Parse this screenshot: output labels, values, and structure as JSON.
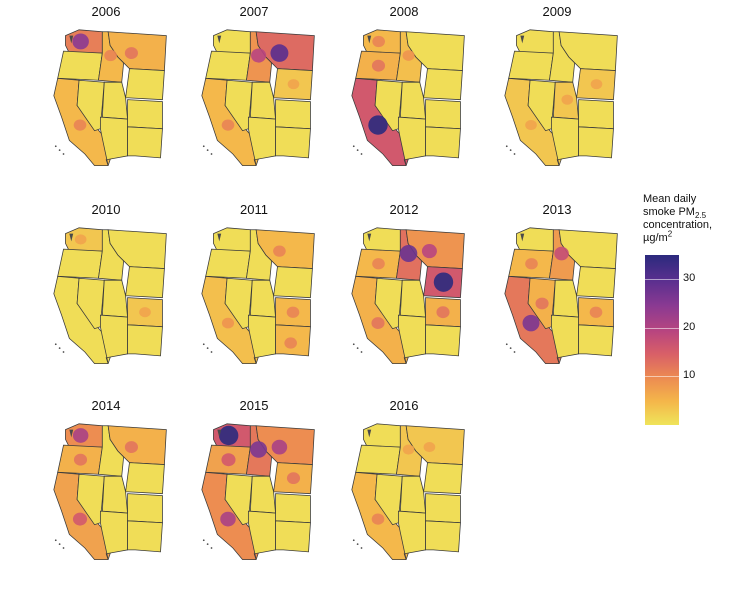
{
  "panels": [
    {
      "year": "2006",
      "hot": [
        {
          "s": "WA",
          "l": 0.7
        },
        {
          "s": "MT",
          "l": 0.35
        },
        {
          "s": "CA",
          "l": 0.3
        },
        {
          "s": "ID",
          "l": 0.3
        }
      ]
    },
    {
      "year": "2007",
      "hot": [
        {
          "s": "MT",
          "l": 0.85
        },
        {
          "s": "ID",
          "l": 0.55
        },
        {
          "s": "CA",
          "l": 0.3
        },
        {
          "s": "WY",
          "l": 0.2
        }
      ]
    },
    {
      "year": "2008",
      "hot": [
        {
          "s": "CA",
          "l": 1.0
        },
        {
          "s": "OR",
          "l": 0.35
        },
        {
          "s": "WA",
          "l": 0.3
        },
        {
          "s": "ID",
          "l": 0.25
        }
      ]
    },
    {
      "year": "2009",
      "hot": [
        {
          "s": "CA",
          "l": 0.2
        },
        {
          "s": "UT",
          "l": 0.2
        },
        {
          "s": "WY",
          "l": 0.2
        }
      ]
    },
    {
      "year": "2010",
      "hot": [
        {
          "s": "WA",
          "l": 0.2
        },
        {
          "s": "CO",
          "l": 0.2
        }
      ]
    },
    {
      "year": "2011",
      "hot": [
        {
          "s": "MT",
          "l": 0.3
        },
        {
          "s": "CO",
          "l": 0.3
        },
        {
          "s": "NM",
          "l": 0.3
        },
        {
          "s": "CA",
          "l": 0.25
        }
      ]
    },
    {
      "year": "2012",
      "hot": [
        {
          "s": "WY",
          "l": 1.0
        },
        {
          "s": "ID",
          "l": 0.8
        },
        {
          "s": "MT",
          "l": 0.55
        },
        {
          "s": "CA",
          "l": 0.35
        },
        {
          "s": "OR",
          "l": 0.3
        },
        {
          "s": "CO",
          "l": 0.35
        }
      ]
    },
    {
      "year": "2013",
      "hot": [
        {
          "s": "CA",
          "l": 0.75
        },
        {
          "s": "ID",
          "l": 0.5
        },
        {
          "s": "NV",
          "l": 0.35
        },
        {
          "s": "OR",
          "l": 0.3
        },
        {
          "s": "CO",
          "l": 0.3
        }
      ]
    },
    {
      "year": "2014",
      "hot": [
        {
          "s": "WA",
          "l": 0.6
        },
        {
          "s": "CA",
          "l": 0.45
        },
        {
          "s": "OR",
          "l": 0.35
        },
        {
          "s": "MT",
          "l": 0.35
        }
      ]
    },
    {
      "year": "2015",
      "hot": [
        {
          "s": "WA",
          "l": 1.0
        },
        {
          "s": "ID",
          "l": 0.75
        },
        {
          "s": "MT",
          "l": 0.6
        },
        {
          "s": "CA",
          "l": 0.6
        },
        {
          "s": "OR",
          "l": 0.45
        },
        {
          "s": "WY",
          "l": 0.35
        }
      ]
    },
    {
      "year": "2016",
      "hot": [
        {
          "s": "CA",
          "l": 0.3
        },
        {
          "s": "MT",
          "l": 0.2
        },
        {
          "s": "ID",
          "l": 0.2
        }
      ]
    }
  ],
  "legend": {
    "line1": "Mean daily",
    "line2_main": "smoke PM",
    "line2_sub": "2.5",
    "line3": "concentration,",
    "line4_main": "µg/m",
    "line4_sup": "2",
    "ticks": [
      {
        "value": 30,
        "label": "30"
      },
      {
        "value": 20,
        "label": "20"
      },
      {
        "value": 10,
        "label": "10"
      }
    ],
    "max": 35
  },
  "colors": {
    "base": "#ece45a",
    "outline": "#3b3b3b",
    "water": "#4a4a4a"
  }
}
